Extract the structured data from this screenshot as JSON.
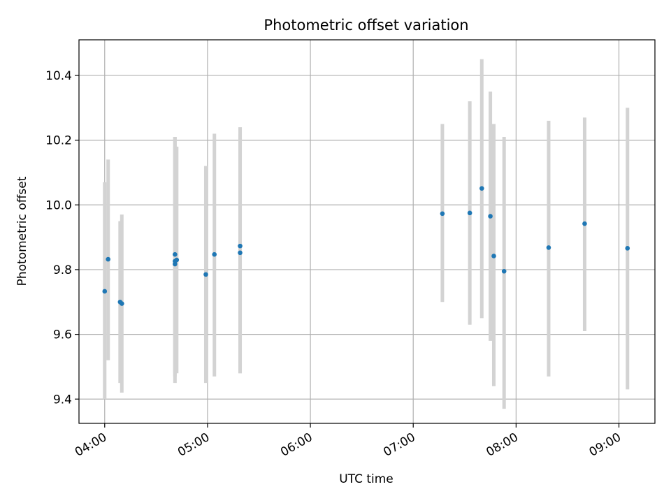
{
  "chart_data": {
    "type": "scatter",
    "title": "Photometric offset variation",
    "xlabel": "UTC time",
    "ylabel": "Photometric offset",
    "x_ticks": [
      "04:00",
      "05:00",
      "06:00",
      "07:00",
      "08:00",
      "09:00"
    ],
    "y_ticks": [
      "9.4",
      "9.6",
      "9.8",
      "10.0",
      "10.2",
      "10.4"
    ],
    "xlim": [
      "03:45",
      "09:21"
    ],
    "ylim": [
      9.325,
      10.51
    ],
    "grid": true,
    "colors": {
      "point": "#1f77b4",
      "errorbar": "#d3d3d3",
      "grid": "#b0b0b0"
    },
    "points": [
      {
        "x": "04:00",
        "y": 9.733,
        "ylow": 9.4,
        "yhigh": 10.07
      },
      {
        "x": "04:02",
        "y": 9.832,
        "ylow": 9.52,
        "yhigh": 10.14
      },
      {
        "x": "04:09",
        "y": 9.7,
        "ylow": 9.45,
        "yhigh": 9.95
      },
      {
        "x": "04:10",
        "y": 9.695,
        "ylow": 9.42,
        "yhigh": 9.97
      },
      {
        "x": "04:41",
        "y": 9.817,
        "ylow": 9.45,
        "yhigh": 10.18
      },
      {
        "x": "04:41",
        "y": 9.826,
        "ylow": 9.47,
        "yhigh": 10.21
      },
      {
        "x": "04:41",
        "y": 9.847,
        "ylow": 9.48,
        "yhigh": 10.21
      },
      {
        "x": "04:42",
        "y": 9.83,
        "ylow": 9.48,
        "yhigh": 10.18
      },
      {
        "x": "04:59",
        "y": 9.785,
        "ylow": 9.45,
        "yhigh": 10.12
      },
      {
        "x": "05:04",
        "y": 9.847,
        "ylow": 9.47,
        "yhigh": 10.22
      },
      {
        "x": "05:19",
        "y": 9.873,
        "ylow": 9.48,
        "yhigh": 10.24
      },
      {
        "x": "05:19",
        "y": 9.852,
        "ylow": 9.48,
        "yhigh": 10.22
      },
      {
        "x": "07:17",
        "y": 9.973,
        "ylow": 9.7,
        "yhigh": 10.25
      },
      {
        "x": "07:33",
        "y": 9.975,
        "ylow": 9.63,
        "yhigh": 10.32
      },
      {
        "x": "07:40",
        "y": 10.051,
        "ylow": 9.65,
        "yhigh": 10.45
      },
      {
        "x": "07:45",
        "y": 9.965,
        "ylow": 9.58,
        "yhigh": 10.35
      },
      {
        "x": "07:47",
        "y": 9.842,
        "ylow": 9.44,
        "yhigh": 10.25
      },
      {
        "x": "07:53",
        "y": 9.795,
        "ylow": 9.37,
        "yhigh": 10.21
      },
      {
        "x": "08:19",
        "y": 9.868,
        "ylow": 9.47,
        "yhigh": 10.26
      },
      {
        "x": "08:40",
        "y": 9.942,
        "ylow": 9.61,
        "yhigh": 10.27
      },
      {
        "x": "09:05",
        "y": 9.866,
        "ylow": 9.43,
        "yhigh": 10.3
      }
    ]
  }
}
